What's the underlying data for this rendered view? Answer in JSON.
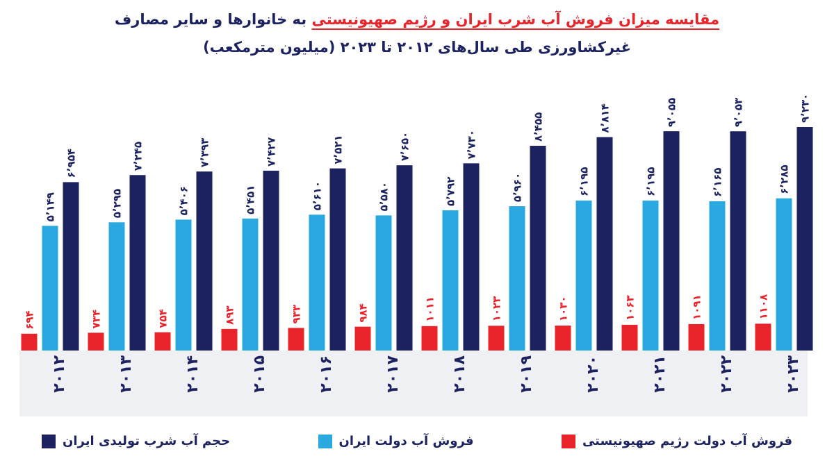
{
  "chart_data": {
    "type": "bar",
    "title_highlight": "مقایسه میزان فروش آب شرب ایران و رژیم صهیونیستی",
    "title": "به خانوارها و سایر مصارف",
    "subtitle": "غیرکشاورزی طی سال‌های ۲۰۱۲ تا ۲۰۲۳ (میلیون مترمکعب)",
    "categories": [
      "۲۰۱۲",
      "۲۰۱۳",
      "۲۰۱۴",
      "۲۰۱۵",
      "۲۰۱۶",
      "۲۰۱۷",
      "۲۰۱۸",
      "۲۰۱۹",
      "۲۰۲۰",
      "۲۰۲۱",
      "۲۰۲۲",
      "۲۰۲۳"
    ],
    "series": [
      {
        "name": "فروش آب دولت رژیم صهیونیستی",
        "color": "#e8232a",
        "label_color": "#e8232a",
        "values": [
          694,
          734,
          754,
          893,
          933,
          984,
          1011,
          1023,
          1030,
          1063,
          1091,
          1108
        ],
        "value_labels": [
          "۶۹۴",
          "۷۳۴",
          "۷۵۴",
          "۸۹۳",
          "۹۳۳",
          "۹۸۴",
          "۱۰۱۱",
          "۱۰۲۳",
          "۱۰۳۰",
          "۱۰۶۳",
          "۱۰۹۱",
          "۱۱۰۸"
        ]
      },
      {
        "name": "فروش آب دولت ایران",
        "color": "#2aa9e0",
        "label_color": "#1c2260",
        "values": [
          5149,
          5295,
          5406,
          5451,
          5610,
          5580,
          5792,
          5960,
          6195,
          6195,
          6165,
          6285
        ],
        "value_labels": [
          "۵٬۱۴۹",
          "۵٬۲۹۵",
          "۵٬۴۰۶",
          "۵٬۴۵۱",
          "۵٬۶۱۰",
          "۵٬۵۸۰",
          "۵٬۷۹۲",
          "۵٬۹۶۰",
          "۶٬۱۹۵",
          "۶٬۱۹۵",
          "۶٬۱۶۵",
          "۶٬۲۸۵"
        ]
      },
      {
        "name": "حجم آب شرب تولیدی ایران",
        "color": "#1c2260",
        "label_color": "#1c2260",
        "values": [
          6954,
          7245,
          7393,
          7427,
          7521,
          7650,
          7730,
          8455,
          8814,
          9055,
          9053,
          9230
        ],
        "value_labels": [
          "۶٬۹۵۴",
          "۷٬۲۴۵",
          "۷٬۳۹۳",
          "۷٬۴۲۷",
          "۷٬۵۲۱",
          "۷٬۶۵۰",
          "۷٬۷۳۰",
          "۸٬۴۵۵",
          "۸٬۸۱۴",
          "۹٬۰۵۵",
          "۹٬۰۵۳",
          "۹٬۲۳۰"
        ]
      }
    ]
  }
}
